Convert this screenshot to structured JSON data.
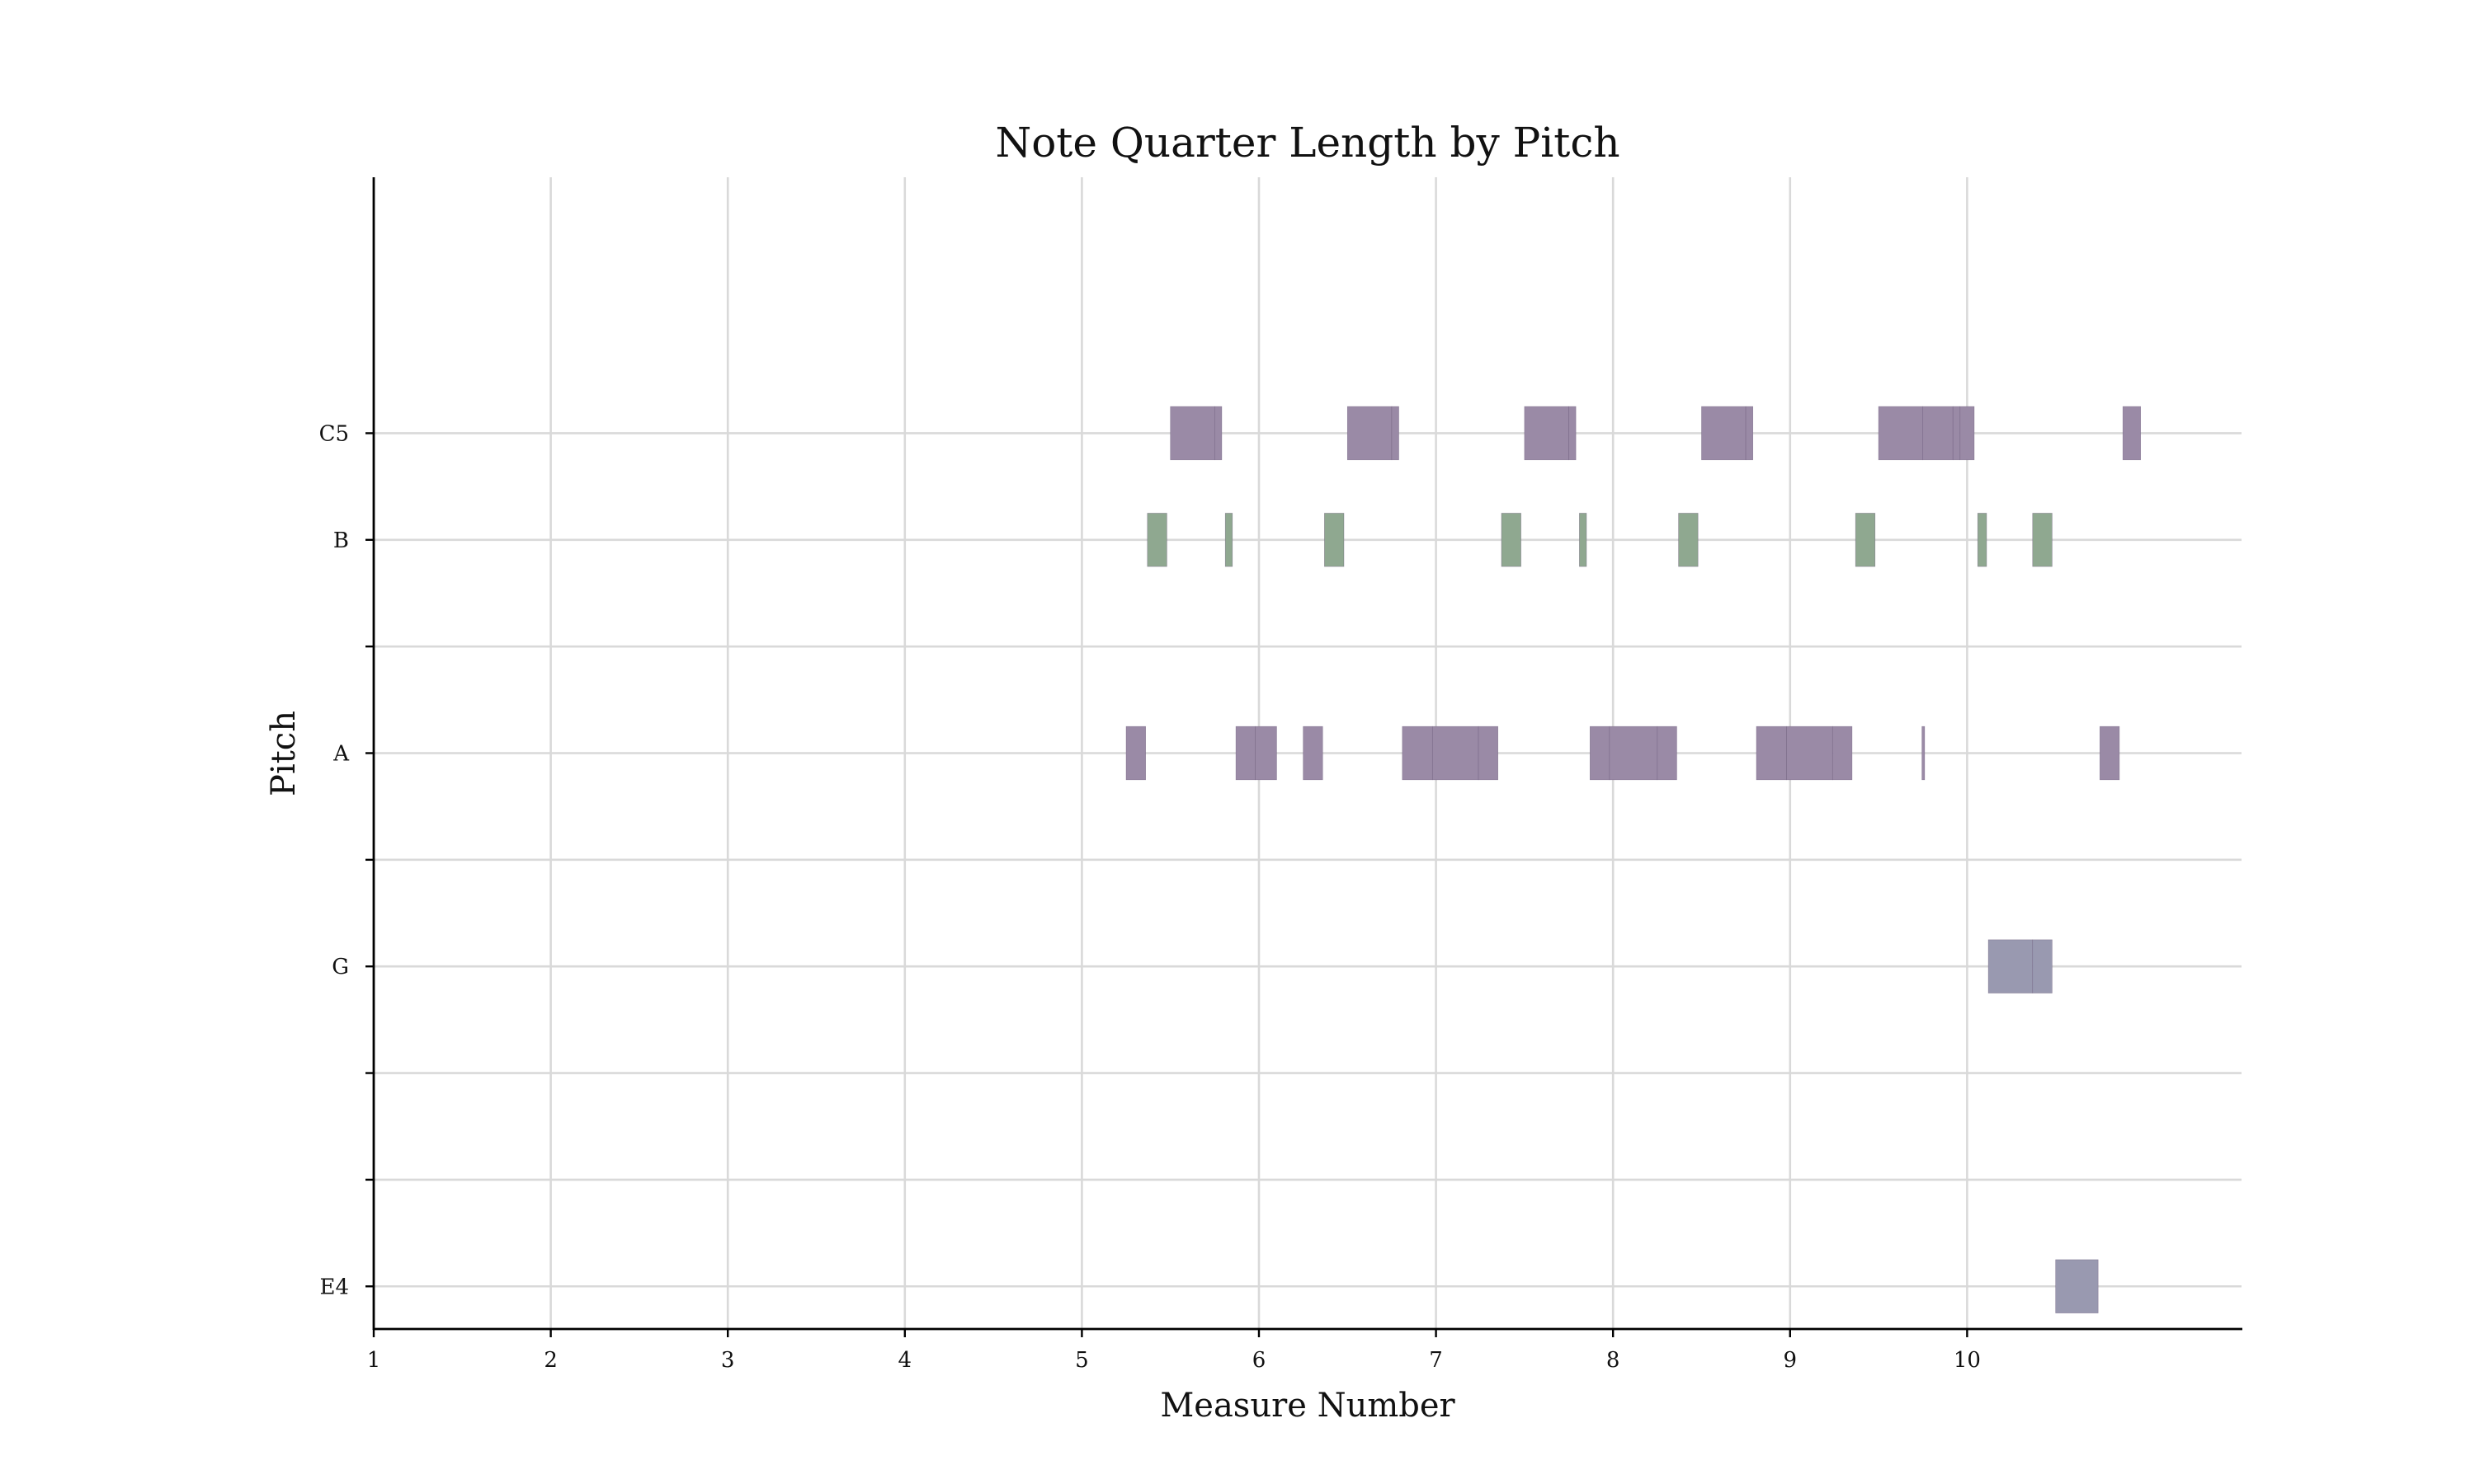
{
  "chart_data": {
    "type": "bar",
    "orientation": "horizontal-ranges",
    "title": "Note Quarter Length by Pitch",
    "xlabel": "Measure Number",
    "ylabel": "Pitch",
    "xlim": [
      1,
      11.55
    ],
    "x_ticks": [
      1,
      2,
      3,
      4,
      5,
      6,
      7,
      8,
      9,
      10
    ],
    "ylim": [
      63.6,
      74.4
    ],
    "y_ticks": [
      {
        "pitch": 64,
        "label": "E4"
      },
      {
        "pitch": 65,
        "label": ""
      },
      {
        "pitch": 66,
        "label": ""
      },
      {
        "pitch": 67,
        "label": "G"
      },
      {
        "pitch": 68,
        "label": ""
      },
      {
        "pitch": 69,
        "label": "A"
      },
      {
        "pitch": 70,
        "label": ""
      },
      {
        "pitch": 71,
        "label": "B"
      },
      {
        "pitch": 72,
        "label": "C5"
      }
    ],
    "grid": true,
    "colors": {
      "purple": "#9a8aa6",
      "green": "#8fa890",
      "blue_gray": "#9999b0",
      "edge": "#6a5a7a"
    },
    "notes": [
      {
        "pitch": 72,
        "start": 5.5,
        "end": 5.75,
        "color": "purple"
      },
      {
        "pitch": 72,
        "start": 5.75,
        "end": 5.79,
        "color": "purple"
      },
      {
        "pitch": 72,
        "start": 6.5,
        "end": 6.75,
        "color": "purple"
      },
      {
        "pitch": 72,
        "start": 6.75,
        "end": 6.79,
        "color": "purple"
      },
      {
        "pitch": 72,
        "start": 7.5,
        "end": 7.75,
        "color": "purple"
      },
      {
        "pitch": 72,
        "start": 7.75,
        "end": 7.79,
        "color": "purple"
      },
      {
        "pitch": 72,
        "start": 8.5,
        "end": 8.75,
        "color": "purple"
      },
      {
        "pitch": 72,
        "start": 8.75,
        "end": 8.79,
        "color": "purple"
      },
      {
        "pitch": 72,
        "start": 9.5,
        "end": 9.75,
        "color": "purple"
      },
      {
        "pitch": 72,
        "start": 9.75,
        "end": 9.92,
        "color": "purple"
      },
      {
        "pitch": 72,
        "start": 9.92,
        "end": 9.96,
        "color": "purple"
      },
      {
        "pitch": 72,
        "start": 9.96,
        "end": 10.04,
        "color": "purple"
      },
      {
        "pitch": 72,
        "start": 10.88,
        "end": 10.98,
        "color": "purple"
      },
      {
        "pitch": 71,
        "start": 5.37,
        "end": 5.48,
        "color": "green"
      },
      {
        "pitch": 71,
        "start": 5.81,
        "end": 5.85,
        "color": "green"
      },
      {
        "pitch": 71,
        "start": 6.37,
        "end": 6.48,
        "color": "green"
      },
      {
        "pitch": 71,
        "start": 7.37,
        "end": 7.48,
        "color": "green"
      },
      {
        "pitch": 71,
        "start": 7.81,
        "end": 7.85,
        "color": "green"
      },
      {
        "pitch": 71,
        "start": 8.37,
        "end": 8.48,
        "color": "green"
      },
      {
        "pitch": 71,
        "start": 9.37,
        "end": 9.48,
        "color": "green"
      },
      {
        "pitch": 71,
        "start": 10.06,
        "end": 10.11,
        "color": "green"
      },
      {
        "pitch": 71,
        "start": 10.37,
        "end": 10.48,
        "color": "green"
      },
      {
        "pitch": 69,
        "start": 5.25,
        "end": 5.36,
        "color": "purple"
      },
      {
        "pitch": 69,
        "start": 5.87,
        "end": 5.98,
        "color": "purple"
      },
      {
        "pitch": 69,
        "start": 5.98,
        "end": 6.1,
        "color": "purple"
      },
      {
        "pitch": 69,
        "start": 6.25,
        "end": 6.36,
        "color": "purple"
      },
      {
        "pitch": 69,
        "start": 6.81,
        "end": 6.98,
        "color": "purple"
      },
      {
        "pitch": 69,
        "start": 6.98,
        "end": 7.24,
        "color": "purple"
      },
      {
        "pitch": 69,
        "start": 7.24,
        "end": 7.35,
        "color": "purple"
      },
      {
        "pitch": 69,
        "start": 7.87,
        "end": 7.98,
        "color": "purple"
      },
      {
        "pitch": 69,
        "start": 7.98,
        "end": 8.25,
        "color": "purple"
      },
      {
        "pitch": 69,
        "start": 8.25,
        "end": 8.36,
        "color": "purple"
      },
      {
        "pitch": 69,
        "start": 8.81,
        "end": 8.98,
        "color": "purple"
      },
      {
        "pitch": 69,
        "start": 8.98,
        "end": 9.24,
        "color": "purple"
      },
      {
        "pitch": 69,
        "start": 9.24,
        "end": 9.35,
        "color": "purple"
      },
      {
        "pitch": 69,
        "start": 9.745,
        "end": 9.76,
        "color": "purple"
      },
      {
        "pitch": 69,
        "start": 10.75,
        "end": 10.86,
        "color": "purple"
      },
      {
        "pitch": 67,
        "start": 10.12,
        "end": 10.37,
        "color": "blue_gray"
      },
      {
        "pitch": 67,
        "start": 10.37,
        "end": 10.48,
        "color": "blue_gray"
      },
      {
        "pitch": 64,
        "start": 10.5,
        "end": 10.74,
        "color": "blue_gray"
      }
    ]
  }
}
